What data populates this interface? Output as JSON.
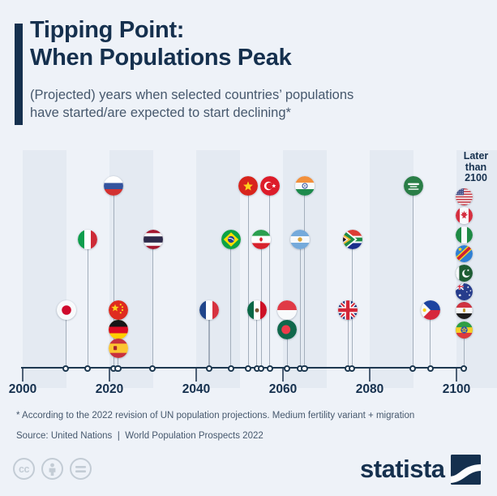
{
  "header": {
    "title_line1": "Tipping Point:",
    "title_line2": "When Populations Peak",
    "subtitle": "(Projected) years when selected countries’ populations\nhave started/are expected to start declining*"
  },
  "chart_data": {
    "type": "timeline-scatter",
    "title": "Tipping Point: When Populations Peak",
    "x_axis": {
      "label": "year",
      "min": 2000,
      "max": 2100,
      "ticks": [
        2000,
        2020,
        2040,
        2060,
        2080,
        2100
      ]
    },
    "legend_position": "none",
    "grid": "decade-stripes",
    "events": [
      {
        "country": "Japan",
        "flag": "japan",
        "year": 2010,
        "lane": "low"
      },
      {
        "country": "Italy",
        "flag": "italy",
        "year": 2015,
        "lane": "mid"
      },
      {
        "country": "Russia",
        "flag": "russia",
        "year": 2021,
        "lane": "top"
      },
      {
        "country": "China",
        "flag": "china",
        "year": 2022,
        "lane": "low"
      },
      {
        "country": "Germany",
        "flag": "germany",
        "year": 2022,
        "lane": "low2"
      },
      {
        "country": "Spain",
        "flag": "spain",
        "year": 2022,
        "lane": "low3"
      },
      {
        "country": "Thailand",
        "flag": "thailand",
        "year": 2030,
        "lane": "mid"
      },
      {
        "country": "France",
        "flag": "france",
        "year": 2043,
        "lane": "low"
      },
      {
        "country": "Brazil",
        "flag": "brazil",
        "year": 2048,
        "lane": "mid"
      },
      {
        "country": "Vietnam",
        "flag": "vietnam",
        "year": 2052,
        "lane": "top"
      },
      {
        "country": "Mexico",
        "flag": "mexico",
        "year": 2054,
        "lane": "low"
      },
      {
        "country": "Iran",
        "flag": "iran",
        "year": 2055,
        "lane": "mid"
      },
      {
        "country": "Turkey",
        "flag": "turkey",
        "year": 2057,
        "lane": "top"
      },
      {
        "country": "Indonesia",
        "flag": "indonesia",
        "year": 2061,
        "lane": "low"
      },
      {
        "country": "Bangladesh",
        "flag": "bangladesh",
        "year": 2061,
        "lane": "low2"
      },
      {
        "country": "Argentina",
        "flag": "argentina",
        "year": 2064,
        "lane": "mid"
      },
      {
        "country": "India",
        "flag": "india",
        "year": 2065,
        "lane": "top"
      },
      {
        "country": "United Kingdom",
        "flag": "uk",
        "year": 2075,
        "lane": "low"
      },
      {
        "country": "South Africa",
        "flag": "southafrica",
        "year": 2076,
        "lane": "mid"
      },
      {
        "country": "Saudi Arabia",
        "flag": "saudi",
        "year": 2090,
        "lane": "top"
      },
      {
        "country": "Philippines",
        "flag": "philippines",
        "year": 2094,
        "lane": "low"
      }
    ],
    "later_than_2100": {
      "label": "Later than 2100",
      "countries": [
        {
          "country": "United States",
          "flag": "usa"
        },
        {
          "country": "Canada",
          "flag": "canada"
        },
        {
          "country": "Nigeria",
          "flag": "nigeria"
        },
        {
          "country": "DR Congo",
          "flag": "drc"
        },
        {
          "country": "Pakistan",
          "flag": "pakistan"
        },
        {
          "country": "Australia",
          "flag": "australia"
        },
        {
          "country": "Egypt",
          "flag": "egypt"
        },
        {
          "country": "Ethiopia",
          "flag": "ethiopia"
        }
      ]
    }
  },
  "footer": {
    "footnote": "* According to the 2022 revision of UN population projections. Medium fertility variant + migration",
    "source": "Source: United Nations ❘ World Population Prospects 2022"
  },
  "branding": {
    "logo_text": "statista"
  },
  "license": {
    "icons": [
      "cc-icon",
      "attribution-icon",
      "no-derivatives-icon"
    ],
    "cc_label": "cc"
  },
  "colors": {
    "background": "#eef2f8",
    "stripe": "#e4eaf2",
    "navy": "#15304e",
    "secondary_text": "#46586d",
    "stem": "#a3aebc"
  }
}
